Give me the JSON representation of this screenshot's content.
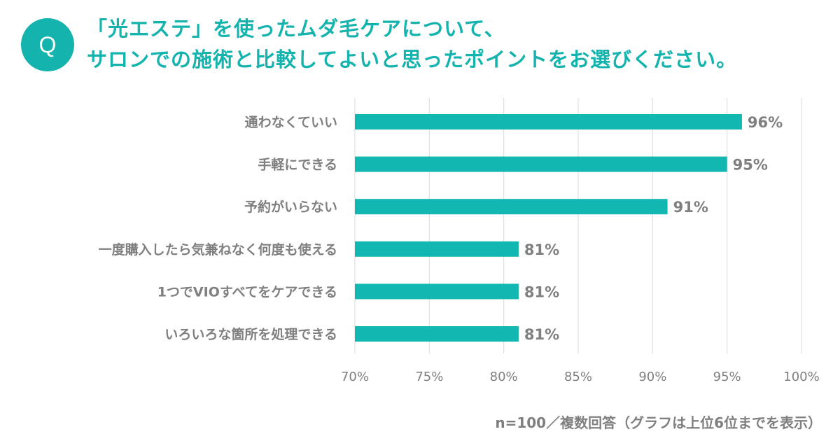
{
  "question": {
    "badge": "Q",
    "title_line1": "「光エステ」を使ったムダ毛ケアについて、",
    "title_line2": "サロンでの施術と比較してよいと思ったポイントをお選びください。"
  },
  "note": "n=100／複数回答（グラフは上位6位までを表示）",
  "colors": {
    "accent": "#14b3ad",
    "bar": "#12b7b1",
    "label": "#7f7f7f",
    "grid": "#d9d9d9"
  },
  "chart_data": {
    "type": "bar",
    "orientation": "horizontal",
    "categories": [
      "通わなくていい",
      "手軽にできる",
      "予約がいらない",
      "一度購入したら気兼ねなく何度も使える",
      "1つでVIOすべてをケアできる",
      "いろいろな箇所を処理できる"
    ],
    "values": [
      96,
      95,
      91,
      81,
      81,
      81
    ],
    "value_labels": [
      "96%",
      "95%",
      "91%",
      "81%",
      "81%",
      "81%"
    ],
    "xlim": [
      70,
      100
    ],
    "x_ticks": [
      70,
      75,
      80,
      85,
      90,
      95,
      100
    ],
    "x_tick_labels": [
      "70%",
      "75%",
      "80%",
      "85%",
      "90%",
      "95%",
      "100%"
    ],
    "grid": "vertical",
    "legend": "none"
  }
}
